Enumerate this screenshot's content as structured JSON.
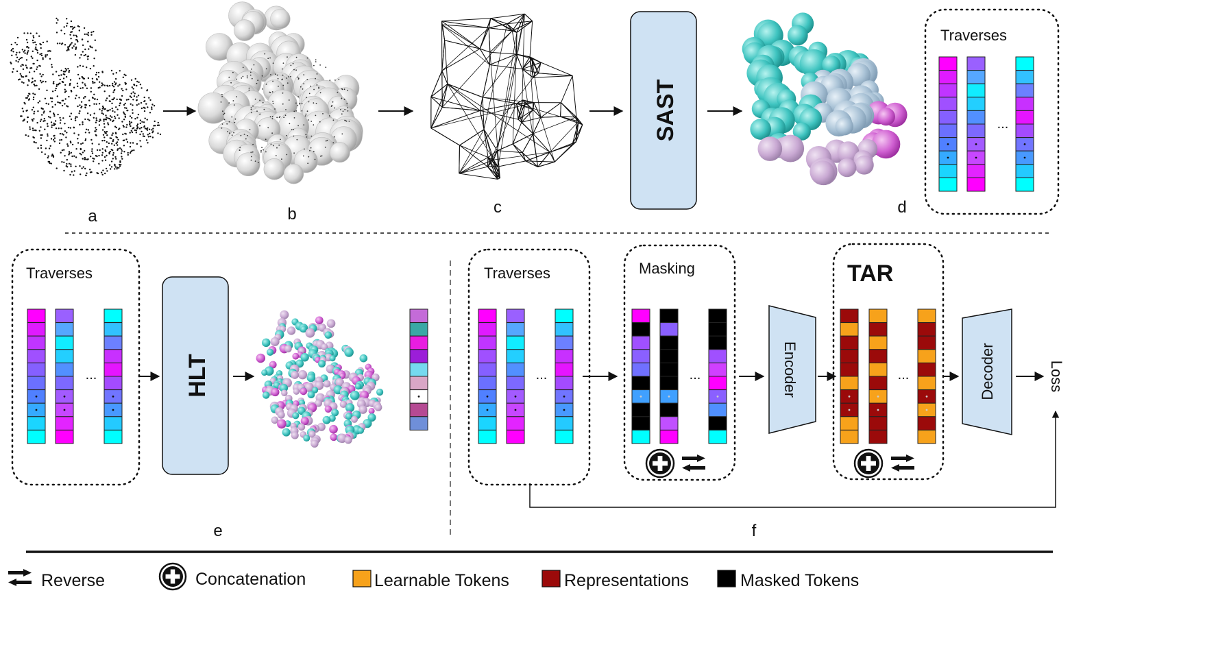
{
  "panels": {
    "a": "a",
    "b": "b",
    "c": "c",
    "d": "d",
    "e": "e",
    "f": "f"
  },
  "blocks": {
    "sast": "SAST",
    "hlt": "HLT",
    "encoder": "Encoder",
    "decoder": "Decoder",
    "loss": "Loss"
  },
  "groups": {
    "traverses": "Traverses",
    "masking": "Masking",
    "tar": "TAR"
  },
  "ellipsis": "...",
  "legend": {
    "reverse": "Reverse",
    "concatenation": "Concatenation",
    "learnable": "Learnable Tokens",
    "representations": "Representations",
    "masked": "Masked Tokens"
  },
  "colors": {
    "block_fill": "#cfe2f3",
    "magenta": "#ff00ff",
    "cyan": "#00ffff",
    "learnable_token": "#f7a21b",
    "representation": "#9b0a0a",
    "masked_token": "#000000",
    "legend_learnable": "#f7a21b",
    "legend_representation": "#9b0a0a",
    "legend_masked": "#000000"
  }
}
